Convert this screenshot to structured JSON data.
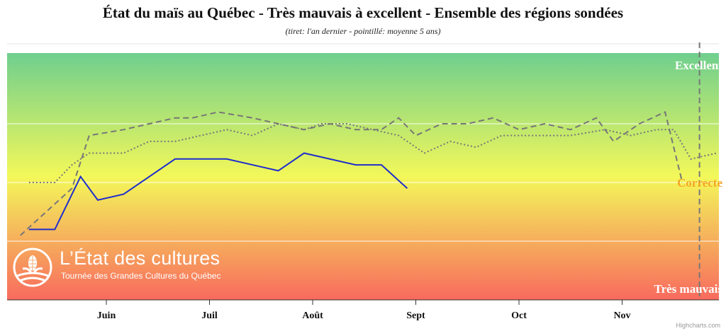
{
  "chart_data": {
    "type": "line",
    "title": "État du maïs au Québec - Très mauvais à excellent - Ensemble des régions sondées",
    "subtitle": "(tiret: l'an dernier - pointillé: moyenne 5 ans)",
    "x_axis": {
      "unit": "week",
      "tick_labels": [
        "Juin",
        "Juil",
        "Août",
        "Sept",
        "Oct",
        "Nov"
      ],
      "tick_positions": [
        5,
        11,
        17,
        23,
        29,
        35
      ]
    },
    "y_axis": {
      "range": [
        1,
        5
      ],
      "gridlines": [
        2,
        3,
        4
      ],
      "category_labels": [
        {
          "value": 5,
          "label": "Excellent",
          "color": "#ffffff"
        },
        {
          "value": 3,
          "label": "Correcte",
          "color": "#f5a623"
        },
        {
          "value": 1,
          "label": "Très mauvais",
          "color": "#ffffff"
        }
      ]
    },
    "background_gradient": [
      "#6fcf8e",
      "#f3f85a",
      "#f86a5e"
    ],
    "series": [
      {
        "style": "solid",
        "color": "#1f2ecc",
        "points": [
          [
            0.5,
            2.2
          ],
          [
            2,
            2.2
          ],
          [
            3.5,
            3.1
          ],
          [
            4.5,
            2.7
          ],
          [
            6,
            2.8
          ],
          [
            9,
            3.4
          ],
          [
            12,
            3.4
          ],
          [
            15,
            3.2
          ],
          [
            16.5,
            3.5
          ],
          [
            19.5,
            3.3
          ],
          [
            21,
            3.3
          ],
          [
            22.5,
            2.9
          ]
        ]
      },
      {
        "style": "dashed",
        "color": "#777777",
        "points": [
          [
            0,
            2.1
          ],
          [
            1.5,
            2.5
          ],
          [
            3,
            2.9
          ],
          [
            4,
            3.8
          ],
          [
            6,
            3.9
          ],
          [
            9,
            4.1
          ],
          [
            10,
            4.1
          ],
          [
            11.5,
            4.2
          ],
          [
            13.5,
            4.1
          ],
          [
            15,
            4.0
          ],
          [
            16.5,
            3.9
          ],
          [
            18,
            4.0
          ],
          [
            19.5,
            3.9
          ],
          [
            21,
            3.9
          ],
          [
            22,
            4.1
          ],
          [
            23,
            3.8
          ],
          [
            24.5,
            4.0
          ],
          [
            26,
            4.0
          ],
          [
            27.5,
            4.1
          ],
          [
            29,
            3.9
          ],
          [
            30.5,
            4.0
          ],
          [
            32,
            3.9
          ],
          [
            33.5,
            4.1
          ],
          [
            34.5,
            3.7
          ],
          [
            36,
            4.0
          ],
          [
            37.5,
            4.2
          ],
          [
            38.5,
            3.0
          ]
        ]
      },
      {
        "style": "dotted",
        "color": "#777777",
        "points": [
          [
            0.5,
            3.0
          ],
          [
            2,
            3.0
          ],
          [
            3,
            3.3
          ],
          [
            4,
            3.5
          ],
          [
            6,
            3.5
          ],
          [
            7.5,
            3.7
          ],
          [
            9,
            3.7
          ],
          [
            12,
            3.9
          ],
          [
            13.5,
            3.8
          ],
          [
            15,
            4.0
          ],
          [
            16.5,
            3.9
          ],
          [
            17.5,
            4.0
          ],
          [
            19,
            4.0
          ],
          [
            20.5,
            3.9
          ],
          [
            22,
            3.8
          ],
          [
            23.5,
            3.5
          ],
          [
            25,
            3.7
          ],
          [
            26.5,
            3.6
          ],
          [
            28,
            3.8
          ],
          [
            30,
            3.8
          ],
          [
            32,
            3.8
          ],
          [
            34,
            3.9
          ],
          [
            35.5,
            3.8
          ],
          [
            37,
            3.9
          ],
          [
            38,
            3.9
          ],
          [
            39,
            3.4
          ],
          [
            40.5,
            3.5
          ]
        ]
      }
    ],
    "current_week_marker": {
      "x": 39.5,
      "style": "dashed",
      "color": "#777777"
    }
  },
  "logo": {
    "title": "L’État des cultures",
    "tagline": "Tournée des Grandes Cultures du Québec"
  },
  "credit": "Highcharts.com"
}
